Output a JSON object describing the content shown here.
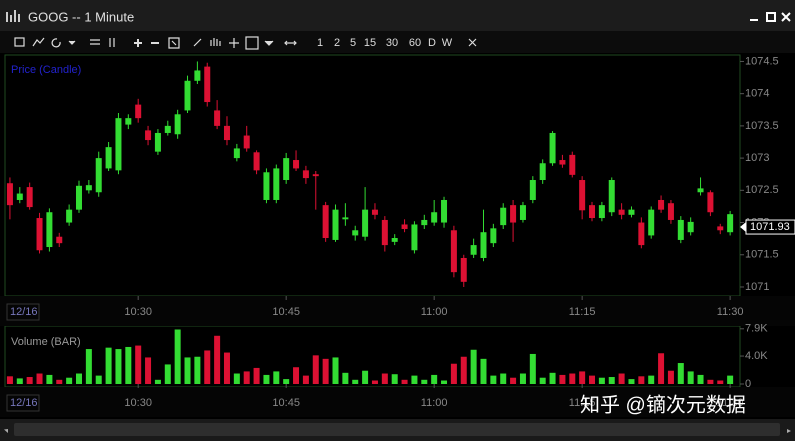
{
  "window": {
    "title": "GOOG -- 1 Minute",
    "intervals": [
      "1",
      "2",
      "5",
      "15",
      "30",
      "60",
      "D",
      "W"
    ],
    "watermark": "知乎 @镝次元数据"
  },
  "chart_data": [
    {
      "type": "candlestick",
      "title": "Price (Candle)",
      "date_label": "12/16",
      "up_color": "#33dd33",
      "down_color": "#dd1133",
      "x": [
        617,
        618,
        619,
        620,
        621,
        622,
        623,
        624,
        625,
        626,
        627,
        628,
        629,
        630,
        631,
        632,
        633,
        634,
        635,
        636,
        637,
        638,
        639,
        640,
        641,
        642,
        643,
        644,
        645,
        646,
        647,
        648,
        649,
        650,
        651,
        652,
        653,
        654,
        655,
        656,
        657,
        658,
        659,
        660,
        661,
        662,
        663,
        664,
        665,
        666,
        667,
        668,
        669,
        670,
        671,
        672,
        673,
        674,
        675,
        676,
        677,
        678,
        679,
        680,
        681,
        682,
        683,
        684,
        685,
        686,
        687,
        688,
        689,
        690
      ],
      "open": [
        1072.61,
        1072.35,
        1072.55,
        1072.07,
        1071.62,
        1071.78,
        1072.0,
        1072.2,
        1072.5,
        1072.47,
        1072.84,
        1072.81,
        1073.52,
        1073.83,
        1073.43,
        1073.1,
        1073.39,
        1073.37,
        1073.74,
        1074.2,
        1074.42,
        1073.74,
        1073.5,
        1073.0,
        1073.35,
        1073.09,
        1072.35,
        1072.35,
        1072.66,
        1072.97,
        1072.81,
        1072.75,
        1072.27,
        1071.73,
        1072.05,
        1071.8,
        1071.78,
        1072.2,
        1072.04,
        1071.7,
        1071.97,
        1071.57,
        1071.96,
        1072.0,
        1072.0,
        1071.88,
        1071.45,
        1071.5,
        1071.45,
        1071.68,
        1071.96,
        1072.27,
        1072.04,
        1072.35,
        1072.66,
        1072.92,
        1072.97,
        1073.05,
        1072.66,
        1072.27,
        1072.07,
        1072.16,
        1072.2,
        1072.12,
        1072.0,
        1071.8,
        1072.35,
        1072.3,
        1071.73,
        1071.85,
        1072.47,
        1072.47,
        1071.94,
        1071.85
      ],
      "high": [
        1072.7,
        1072.55,
        1072.62,
        1072.15,
        1072.22,
        1071.84,
        1072.28,
        1072.65,
        1072.66,
        1073.1,
        1073.25,
        1073.7,
        1073.68,
        1073.92,
        1073.5,
        1073.45,
        1073.58,
        1073.75,
        1074.28,
        1074.5,
        1074.48,
        1073.9,
        1073.65,
        1073.22,
        1073.5,
        1073.12,
        1072.84,
        1072.9,
        1073.08,
        1073.12,
        1072.88,
        1072.8,
        1072.32,
        1072.28,
        1072.3,
        1071.95,
        1072.55,
        1072.3,
        1072.1,
        1071.82,
        1072.05,
        1072.02,
        1072.12,
        1072.35,
        1072.4,
        1071.95,
        1071.5,
        1071.75,
        1072.2,
        1071.98,
        1072.3,
        1072.35,
        1072.32,
        1072.72,
        1072.98,
        1073.42,
        1073.05,
        1073.1,
        1072.72,
        1072.32,
        1072.32,
        1072.7,
        1072.3,
        1072.25,
        1072.08,
        1072.25,
        1072.42,
        1072.35,
        1072.1,
        1072.08,
        1072.7,
        1072.5,
        1071.98,
        1072.18
      ],
      "low": [
        1072.05,
        1072.3,
        1072.2,
        1071.52,
        1071.55,
        1071.62,
        1071.95,
        1072.15,
        1072.45,
        1072.4,
        1072.8,
        1072.75,
        1073.45,
        1073.55,
        1073.2,
        1073.05,
        1073.35,
        1073.3,
        1073.7,
        1074.15,
        1073.8,
        1073.45,
        1073.2,
        1072.95,
        1073.1,
        1072.75,
        1072.3,
        1072.3,
        1072.6,
        1072.8,
        1072.6,
        1072.2,
        1071.7,
        1071.7,
        1071.95,
        1071.72,
        1071.72,
        1072.05,
        1071.55,
        1071.65,
        1071.85,
        1071.52,
        1071.9,
        1071.95,
        1071.92,
        1071.15,
        1071.0,
        1071.45,
        1071.4,
        1071.62,
        1071.9,
        1071.7,
        1072.0,
        1072.3,
        1072.6,
        1072.88,
        1072.85,
        1072.7,
        1072.05,
        1072.02,
        1072.02,
        1072.1,
        1072.05,
        1072.08,
        1071.6,
        1071.75,
        1072.15,
        1071.98,
        1071.68,
        1071.8,
        1072.42,
        1072.1,
        1071.82,
        1071.8
      ],
      "close": [
        1072.27,
        1072.45,
        1072.24,
        1071.57,
        1072.16,
        1071.68,
        1072.2,
        1072.57,
        1072.58,
        1073.0,
        1073.17,
        1073.62,
        1073.62,
        1073.62,
        1073.28,
        1073.39,
        1073.5,
        1073.68,
        1074.2,
        1074.36,
        1073.87,
        1073.5,
        1073.28,
        1073.15,
        1073.15,
        1072.81,
        1072.78,
        1072.84,
        1073.0,
        1072.84,
        1072.69,
        1072.72,
        1071.76,
        1072.2,
        1072.08,
        1071.88,
        1072.2,
        1072.12,
        1071.65,
        1071.76,
        1071.9,
        1071.97,
        1072.04,
        1072.16,
        1072.35,
        1071.23,
        1071.08,
        1071.65,
        1071.85,
        1071.91,
        1072.23,
        1072.0,
        1072.27,
        1072.66,
        1072.92,
        1073.39,
        1072.9,
        1072.74,
        1072.19,
        1072.07,
        1072.27,
        1072.66,
        1072.12,
        1072.2,
        1071.65,
        1072.2,
        1072.2,
        1072.04,
        1072.04,
        1072.01,
        1072.53,
        1072.16,
        1071.88,
        1072.13
      ],
      "last_price": 1071.93,
      "xlim": [
        616.5,
        691
      ],
      "xticks": [
        {
          "value": 630,
          "label": "10:30"
        },
        {
          "value": 645,
          "label": "10:45"
        },
        {
          "value": 660,
          "label": "11:00"
        },
        {
          "value": 675,
          "label": "11:15"
        },
        {
          "value": 690,
          "label": "11:30"
        }
      ],
      "ylim": [
        1070.86,
        1074.6
      ],
      "yticks": [
        1071,
        1071.5,
        1072,
        1072.5,
        1073,
        1073.5,
        1074,
        1074.5
      ]
    },
    {
      "type": "bar",
      "title": "Volume (BAR)",
      "values": [
        1100,
        800,
        1000,
        1500,
        1300,
        600,
        900,
        1500,
        5000,
        1200,
        5200,
        5000,
        5300,
        5500,
        3800,
        600,
        2800,
        7800,
        3800,
        3900,
        4800,
        6900,
        4500,
        1500,
        1800,
        2300,
        1300,
        1800,
        700,
        2400,
        1200,
        4100,
        3600,
        3800,
        1600,
        600,
        1900,
        500,
        1500,
        1400,
        600,
        1200,
        600,
        1300,
        500,
        2900,
        3900,
        4900,
        3600,
        1200,
        1500,
        900,
        1500,
        4300,
        900,
        1600,
        1300,
        1500,
        1800,
        1200,
        900,
        1000,
        1500,
        700,
        1100,
        1200,
        4400,
        1900,
        3000,
        1800,
        1300,
        600,
        500,
        1200
      ],
      "ylim": [
        0,
        8300
      ],
      "yticks": [
        {
          "value": 7900,
          "label": "7.9K"
        },
        {
          "value": 4000,
          "label": "4.0K"
        },
        0
      ]
    }
  ]
}
